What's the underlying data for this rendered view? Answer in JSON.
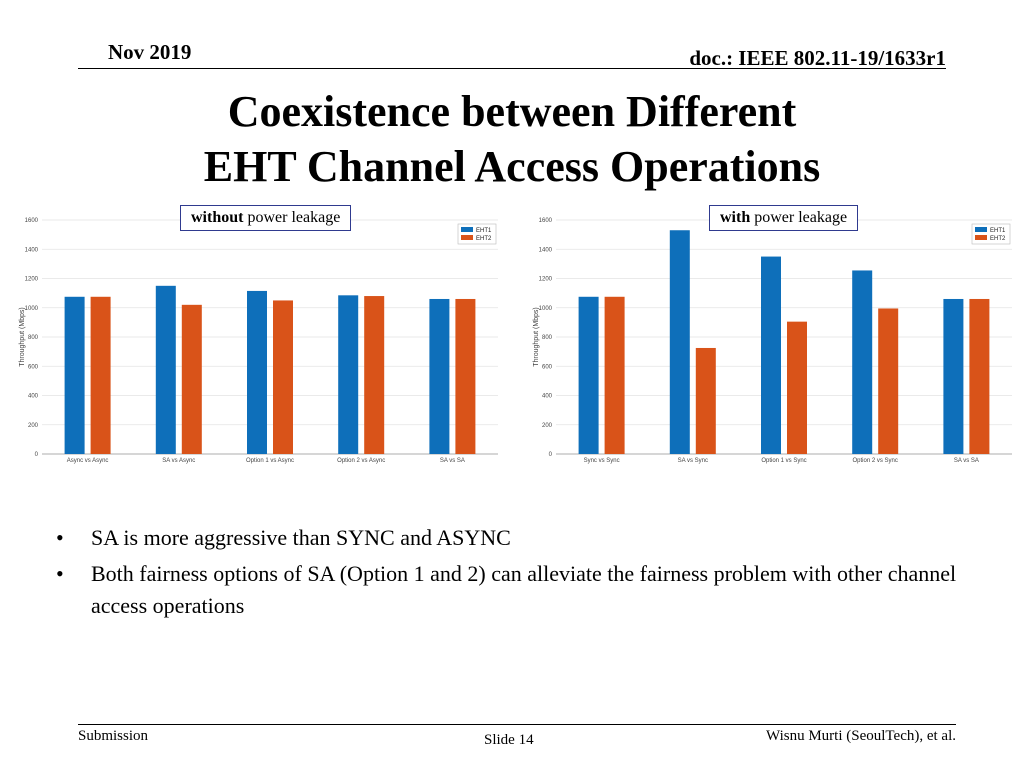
{
  "header": {
    "date": "Nov 2019",
    "doc": "doc.: IEEE 802.11-19/1633r1"
  },
  "title": {
    "line1": "Coexistence between Different",
    "line2": "EHT Channel Access Operations"
  },
  "labels": {
    "left": {
      "bold": "without",
      "rest": " power leakage"
    },
    "right": {
      "bold": "with",
      "rest": " power leakage"
    }
  },
  "colors": {
    "EHT1": "#0e6fba",
    "EHT2": "#d95319"
  },
  "chart_data": [
    {
      "type": "bar",
      "ylabel": "Throughput (Mbps)",
      "ylim": [
        0,
        1600
      ],
      "yticks": [
        0,
        200,
        400,
        600,
        800,
        1000,
        1200,
        1400,
        1600
      ],
      "legend_position": "top-right",
      "grid": true,
      "categories": [
        "Async vs Async",
        "SA vs Async",
        "Option 1 vs Async",
        "Option 2 vs Async",
        "SA vs SA"
      ],
      "series": [
        {
          "name": "EHT1",
          "values": [
            1075,
            1150,
            1115,
            1085,
            1060
          ]
        },
        {
          "name": "EHT2",
          "values": [
            1075,
            1020,
            1050,
            1080,
            1060
          ]
        }
      ]
    },
    {
      "type": "bar",
      "ylabel": "Throughput (Mbps)",
      "ylim": [
        0,
        1600
      ],
      "yticks": [
        0,
        200,
        400,
        600,
        800,
        1000,
        1200,
        1400,
        1600
      ],
      "legend_position": "top-right",
      "grid": true,
      "categories": [
        "Sync vs Sync",
        "SA vs Sync",
        "Option 1 vs Sync",
        "Option 2 vs Sync",
        "SA vs SA"
      ],
      "series": [
        {
          "name": "EHT1",
          "values": [
            1075,
            1530,
            1350,
            1255,
            1060
          ]
        },
        {
          "name": "EHT2",
          "values": [
            1075,
            725,
            905,
            995,
            1060
          ]
        }
      ]
    }
  ],
  "bullets": [
    "SA is more aggressive than SYNC and ASYNC",
    "Both fairness options of SA (Option 1 and 2) can alleviate the fairness problem with other channel access operations"
  ],
  "footer": {
    "left": "Submission",
    "center": "Slide 14",
    "right": "Wisnu Murti (SeoulTech), et al."
  }
}
